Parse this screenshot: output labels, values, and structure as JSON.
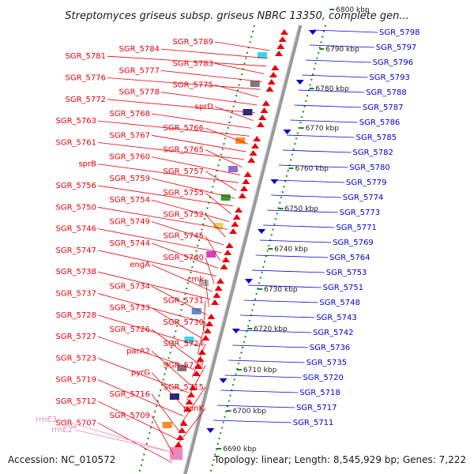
{
  "title": "Streptomyces griseus subsp. griseus NBRC 13350, complete gen...",
  "accession": "Accession: NC_010572",
  "topology": "Topology: linear; Length: 8,545,929 bp; Genes: 7,222",
  "colors": {
    "reverse_strand": "#e8000b",
    "forward_strand": "#0000d0",
    "rrna": "#ee88bb",
    "backbone": "#9a9a9a",
    "kbp_ticks": "#1a8a1a"
  },
  "kbp_ticks": [
    {
      "label": "6690 kbp"
    },
    {
      "label": "6700 kbp"
    },
    {
      "label": "6710 kbp"
    },
    {
      "label": "6720 kbp"
    },
    {
      "label": "6730 kbp"
    },
    {
      "label": "6740 kbp"
    },
    {
      "label": "6750 kbp"
    },
    {
      "label": "6760 kbp"
    },
    {
      "label": "6770 kbp"
    },
    {
      "label": "6780 kbp"
    },
    {
      "label": "6790 kbp"
    },
    {
      "label": "6800 kbp"
    }
  ],
  "left_labels": [
    "SGR_5789",
    "SGR_5784",
    "SGR_5781",
    "SGR_5783",
    "SGR_5777",
    "SGR_5776",
    "SGR_5775",
    "SGR_5778",
    "SGR_5772",
    "sprD",
    "SGR_5768",
    "SGR_5763",
    "SGR_5766",
    "SGR_5767",
    "SGR_5761",
    "SGR_5765",
    "SGR_5760",
    "sprB",
    "SGR_5757",
    "SGR_5759",
    "SGR_5756",
    "SGR_5755",
    "SGR_5754",
    "SGR_5750",
    "SGR_5752",
    "SGR_5749",
    "SGR_5746",
    "SGR_5745",
    "SGR_5744",
    "SGR_5747",
    "SGR_5740",
    "engA",
    "SGR_5738",
    "cmk",
    "SGR_5734",
    "SGR_5737",
    "SGR_5731",
    "SGR_5733",
    "SGR_5728",
    "SGR_5730",
    "SGR_5726",
    "SGR_5727",
    "SGR_5724",
    "parA2",
    "SGR_5723",
    "SGR_5722",
    "pyrG",
    "SGR_5719",
    "SGR_5715",
    "SGR_5716",
    "SGR_5712",
    "ppnK",
    "SGR_5709",
    "SGR_5707"
  ],
  "rrna_labels": [
    "rrnE3",
    "rrnE2"
  ],
  "right_labels": [
    "SGR_5798",
    "SGR_5797",
    "SGR_5796",
    "SGR_5793",
    "SGR_5788",
    "SGR_5787",
    "SGR_5786",
    "SGR_5785",
    "SGR_5782",
    "SGR_5780",
    "SGR_5779",
    "SGR_5774",
    "SGR_5773",
    "SGR_5771",
    "SGR_5769",
    "SGR_5764",
    "SGR_5753",
    "SGR_5751",
    "SGR_5748",
    "SGR_5743",
    "SGR_5742",
    "SGR_5736",
    "SGR_5735",
    "SGR_5720",
    "SGR_5718",
    "SGR_5717",
    "SGR_5711"
  ]
}
